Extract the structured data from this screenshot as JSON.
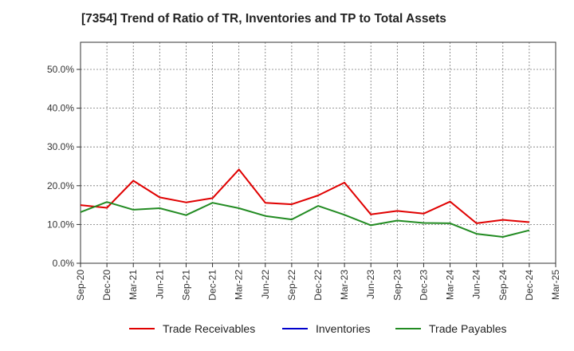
{
  "chart_data": {
    "type": "line",
    "title": "[7354]  Trend of Ratio of TR, Inventories and TP to Total Assets",
    "xlabel": "",
    "ylabel": "",
    "categories": [
      "Sep-20",
      "Dec-20",
      "Mar-21",
      "Jun-21",
      "Sep-21",
      "Dec-21",
      "Mar-22",
      "Jun-22",
      "Sep-22",
      "Dec-22",
      "Mar-23",
      "Jun-23",
      "Sep-23",
      "Dec-23",
      "Mar-24",
      "Jun-24",
      "Sep-24",
      "Dec-24",
      "Mar-25"
    ],
    "ylim": [
      0,
      57
    ],
    "yticks": [
      0,
      10,
      20,
      30,
      40,
      50
    ],
    "ytick_labels": [
      "0.0%",
      "10.0%",
      "20.0%",
      "30.0%",
      "40.0%",
      "50.0%"
    ],
    "grid": true,
    "legend_position": "bottom",
    "series": [
      {
        "name": "Trade Receivables",
        "color": "#e00000",
        "values": [
          15.0,
          14.3,
          21.3,
          17.0,
          15.7,
          16.8,
          24.2,
          15.6,
          15.2,
          17.5,
          20.8,
          12.6,
          13.5,
          12.8,
          15.9,
          10.3,
          11.2,
          10.6,
          null
        ]
      },
      {
        "name": "Inventories",
        "color": "#0000cc",
        "values": [
          null,
          null,
          null,
          null,
          null,
          null,
          null,
          null,
          null,
          null,
          null,
          null,
          null,
          null,
          null,
          null,
          null,
          null,
          null
        ]
      },
      {
        "name": "Trade Payables",
        "color": "#228b22",
        "values": [
          13.2,
          15.8,
          13.8,
          14.2,
          12.4,
          15.6,
          14.2,
          12.2,
          11.3,
          14.8,
          12.5,
          9.8,
          11.0,
          10.4,
          10.3,
          7.6,
          6.8,
          8.5,
          null
        ]
      }
    ]
  }
}
